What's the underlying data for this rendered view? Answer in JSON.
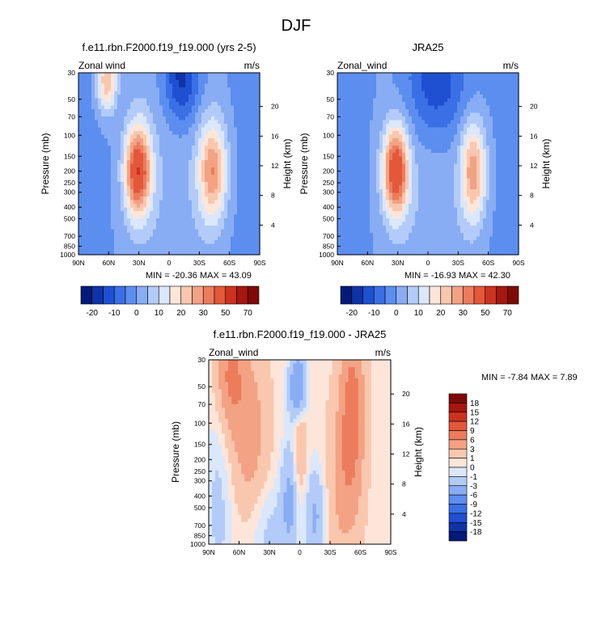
{
  "figure": {
    "title": "DJF"
  },
  "colors": {
    "main_scale": [
      "#051a78",
      "#0f33a8",
      "#1e50d1",
      "#3b6fe6",
      "#5c8eef",
      "#88adf4",
      "#b3cbf8",
      "#dbe7fb",
      "#fde6d9",
      "#f9c7ae",
      "#f3a284",
      "#ec7c5c",
      "#e45739",
      "#cb3220",
      "#a5170f",
      "#7e0a07"
    ],
    "diff_scale": [
      "#051a78",
      "#0f33a8",
      "#1e50d1",
      "#3b6fe6",
      "#5c8eef",
      "#88adf4",
      "#b3cbf8",
      "#dbe7fb",
      "#fde6d9",
      "#f9c7ae",
      "#f3a284",
      "#ec7c5c",
      "#e45739",
      "#cb3220",
      "#a5170f",
      "#7e0a07"
    ]
  },
  "chart_data": [
    {
      "type": "heatmap",
      "id": "model",
      "title": "f.e11.rbn.F2000.f19_f19.000 (yrs 2-5)",
      "left_label": "Zonal wind",
      "right_label": "m/s",
      "xlabel": "",
      "ylabel": "Pressure (mb)",
      "y2label": "Height (km)",
      "x_ticks": [
        "90N",
        "60N",
        "30N",
        "0",
        "30S",
        "60S",
        "90S"
      ],
      "y_ticks": [
        "30",
        "50",
        "70",
        "100",
        "150",
        "200",
        "250",
        "300",
        "400",
        "500",
        "700",
        "850",
        "1000"
      ],
      "y2_ticks": [
        "20",
        "16",
        "12",
        "8",
        "4"
      ],
      "min_max_text": "MIN = -20.36  MAX =  43.09",
      "colorbar_labels": [
        "-20",
        "-10",
        "0",
        "10",
        "20",
        "30",
        "50",
        "70"
      ],
      "jets": [
        {
          "lat": 31,
          "p": 200,
          "max": 43,
          "wlat": 9,
          "wlogp": 0.26
        },
        {
          "lat": -43,
          "p": 200,
          "max": 29,
          "wlat": 10,
          "wlogp": 0.3
        },
        {
          "lat": 62,
          "p": 35,
          "max": 25,
          "wlat": 7,
          "wlogp": 0.18
        },
        {
          "lat": -12,
          "p": 32,
          "max": -20,
          "wlat": 13,
          "wlogp": 0.28
        }
      ]
    },
    {
      "type": "heatmap",
      "id": "obs",
      "title": "JRA25",
      "left_label": "Zonal_wind",
      "right_label": "m/s",
      "xlabel": "",
      "ylabel": "Pressure (mb)",
      "y2label": "Height (km)",
      "x_ticks": [
        "90N",
        "60N",
        "30N",
        "0",
        "30S",
        "60S",
        "90S"
      ],
      "y_ticks": [
        "30",
        "50",
        "70",
        "100",
        "150",
        "200",
        "250",
        "300",
        "400",
        "500",
        "700",
        "850",
        "1000"
      ],
      "y2_ticks": [
        "20",
        "16",
        "12",
        "8",
        "4"
      ],
      "min_max_text": "MIN = -16.93  MAX =  42.30",
      "colorbar_labels": [
        "-20",
        "-10",
        "0",
        "10",
        "20",
        "30",
        "50",
        "70"
      ],
      "jets": [
        {
          "lat": 32,
          "p": 200,
          "max": 42,
          "wlat": 9,
          "wlogp": 0.26
        },
        {
          "lat": -45,
          "p": 200,
          "max": 28,
          "wlat": 9,
          "wlogp": 0.3
        },
        {
          "lat": -8,
          "p": 35,
          "max": -17,
          "wlat": 22,
          "wlogp": 0.35
        }
      ]
    },
    {
      "type": "heatmap",
      "id": "diff",
      "title": "f.e11.rbn.F2000.f19_f19.000 - JRA25",
      "left_label": "Zonal_wind",
      "right_label": "m/s",
      "xlabel": "",
      "ylabel": "Pressure (mb)",
      "y2label": "Height (km)",
      "x_ticks": [
        "90N",
        "60N",
        "30N",
        "0",
        "30S",
        "60S",
        "90S"
      ],
      "y_ticks": [
        "30",
        "50",
        "70",
        "100",
        "150",
        "200",
        "250",
        "300",
        "400",
        "500",
        "700",
        "850",
        "1000"
      ],
      "y2_ticks": [
        "20",
        "16",
        "12",
        "8",
        "4"
      ],
      "min_max_text": "MIN =  -7.84  MAX =   7.89",
      "colorbar_labels": [
        "18",
        "15",
        "12",
        "9",
        "6",
        "3",
        "1",
        "0",
        "-1",
        "-3",
        "-6",
        "-9",
        "-12",
        "-15",
        "-18"
      ],
      "blobs": [
        {
          "lat": 68,
          "p": 40,
          "v": 6,
          "wlat": 9,
          "wlogp": 0.3
        },
        {
          "lat": 50,
          "p": 120,
          "v": 4,
          "wlat": 12,
          "wlogp": 0.45
        },
        {
          "lat": -52,
          "p": 80,
          "v": 7,
          "wlat": 8,
          "wlogp": 0.5
        },
        {
          "lat": -42,
          "p": 300,
          "v": 3,
          "wlat": 10,
          "wlogp": 0.45
        },
        {
          "lat": 2,
          "p": 50,
          "v": -7,
          "wlat": 6,
          "wlogp": 0.2
        },
        {
          "lat": 10,
          "p": 400,
          "v": -4,
          "wlat": 6,
          "wlogp": 0.35
        },
        {
          "lat": -15,
          "p": 600,
          "v": -4,
          "wlat": 7,
          "wlogp": 0.3
        },
        {
          "lat": 0,
          "p": 150,
          "v": 3,
          "wlat": 5,
          "wlogp": 0.3
        },
        {
          "lat": 80,
          "p": 500,
          "v": -2,
          "wlat": 10,
          "wlogp": 0.6
        },
        {
          "lat": 30,
          "p": 800,
          "v": -2,
          "wlat": 15,
          "wlogp": 0.3
        }
      ]
    }
  ]
}
